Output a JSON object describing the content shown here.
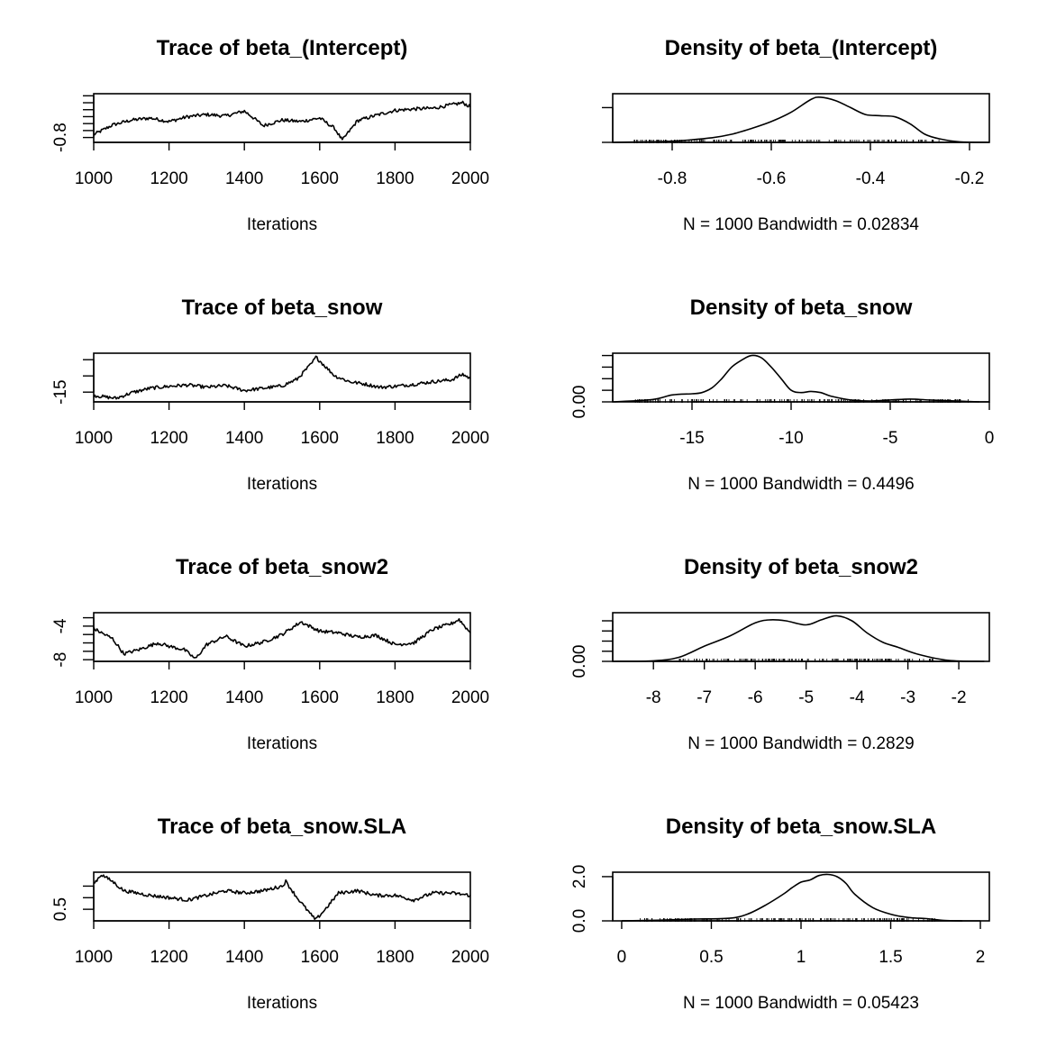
{
  "figure": {
    "layout": "4 rows x 2 columns",
    "background": "#ffffff",
    "line_color": "#000000"
  },
  "chart_data": [
    {
      "type": "line",
      "title": "Trace of beta_(Intercept)",
      "xlabel": "Iterations",
      "ylabel": "",
      "xlim": [
        1000,
        2000
      ],
      "ylim": [
        -0.87,
        -0.17
      ],
      "xticks": [
        1000,
        1200,
        1400,
        1600,
        1800,
        2000
      ],
      "yticks": [
        -0.8,
        -0.7,
        -0.6,
        -0.5,
        -0.4,
        -0.3,
        -0.2
      ],
      "ytick_labels": [
        "-0.8"
      ],
      "series": [
        {
          "x": [
            1000,
            1050,
            1100,
            1150,
            1200,
            1250,
            1300,
            1350,
            1400,
            1420,
            1450,
            1500,
            1550,
            1600,
            1640,
            1660,
            1700,
            1750,
            1800,
            1850,
            1900,
            1950,
            1980,
            2000
          ],
          "values": [
            -0.76,
            -0.62,
            -0.55,
            -0.52,
            -0.57,
            -0.5,
            -0.47,
            -0.49,
            -0.42,
            -0.5,
            -0.63,
            -0.55,
            -0.57,
            -0.52,
            -0.67,
            -0.84,
            -0.56,
            -0.48,
            -0.41,
            -0.39,
            -0.38,
            -0.33,
            -0.3,
            -0.36
          ]
        }
      ]
    },
    {
      "type": "area",
      "title": "Density of beta_(Intercept)",
      "xlabel": "N = 1000   Bandwidth = 0.02834",
      "ylabel": "",
      "xlim": [
        -0.92,
        -0.16
      ],
      "ylim": [
        0,
        4.2
      ],
      "xticks": [
        -0.8,
        -0.6,
        -0.4,
        -0.2
      ],
      "yticks": [
        0,
        3
      ],
      "series": [
        {
          "x": [
            -0.92,
            -0.8,
            -0.72,
            -0.68,
            -0.64,
            -0.6,
            -0.56,
            -0.52,
            -0.5,
            -0.47,
            -0.44,
            -0.41,
            -0.38,
            -0.35,
            -0.32,
            -0.29,
            -0.26,
            -0.22,
            -0.16
          ],
          "values": [
            0,
            0.1,
            0.4,
            0.7,
            1.2,
            1.8,
            2.6,
            3.7,
            3.9,
            3.6,
            3.0,
            2.4,
            2.3,
            2.2,
            1.6,
            0.7,
            0.3,
            0.05,
            0
          ]
        }
      ],
      "rug_range": [
        -0.88,
        -0.25
      ]
    },
    {
      "type": "line",
      "title": "Trace of beta_snow",
      "xlabel": "Iterations",
      "ylabel": "",
      "xlim": [
        1000,
        2000
      ],
      "ylim": [
        -18,
        -3
      ],
      "xticks": [
        1000,
        1200,
        1400,
        1600,
        1800,
        2000
      ],
      "yticks": [
        -15,
        -10,
        -5
      ],
      "ytick_labels": [
        "-15"
      ],
      "series": [
        {
          "x": [
            1000,
            1030,
            1060,
            1100,
            1150,
            1200,
            1250,
            1300,
            1350,
            1400,
            1450,
            1500,
            1540,
            1580,
            1590,
            1610,
            1640,
            1680,
            1720,
            1760,
            1800,
            1850,
            1900,
            1950,
            1980,
            2000
          ],
          "values": [
            -16.0,
            -16.5,
            -16.9,
            -15.2,
            -13.8,
            -13.2,
            -12.8,
            -13.5,
            -13.0,
            -14.5,
            -13.8,
            -13.1,
            -11.0,
            -6.0,
            -4.2,
            -6.5,
            -10.0,
            -11.8,
            -12.5,
            -13.5,
            -13.2,
            -12.6,
            -11.8,
            -11.2,
            -9.5,
            -10.8
          ]
        }
      ]
    },
    {
      "type": "area",
      "title": "Density of beta_snow",
      "xlabel": "N = 1000   Bandwidth = 0.4496",
      "ylabel": "",
      "xlim": [
        -19,
        0
      ],
      "ylim": [
        0,
        0.21
      ],
      "xticks": [
        -15,
        -10,
        -5,
        0
      ],
      "yticks": [
        0.0,
        0.05,
        0.1,
        0.15,
        0.2
      ],
      "ytick_labels": [
        "0.00"
      ],
      "series": [
        {
          "x": [
            -19,
            -17,
            -16,
            -15,
            -14.5,
            -14,
            -13.5,
            -13,
            -12.5,
            -12,
            -11.5,
            -11,
            -10.5,
            -10,
            -9.5,
            -9,
            -8.5,
            -8,
            -7,
            -6,
            -5,
            -4,
            -3,
            -1.5,
            -0.5
          ],
          "values": [
            0,
            0.01,
            0.03,
            0.035,
            0.04,
            0.06,
            0.1,
            0.15,
            0.18,
            0.2,
            0.19,
            0.15,
            0.1,
            0.05,
            0.04,
            0.045,
            0.04,
            0.025,
            0.008,
            0.004,
            0.008,
            0.012,
            0.008,
            0.003,
            0
          ]
        }
      ],
      "rug_range": [
        -18,
        -1
      ]
    },
    {
      "type": "line",
      "title": "Trace of beta_snow2",
      "xlabel": "Iterations",
      "ylabel": "",
      "xlim": [
        1000,
        2000
      ],
      "ylim": [
        -8.2,
        -2.4
      ],
      "xticks": [
        1000,
        1200,
        1400,
        1600,
        1800,
        2000
      ],
      "yticks": [
        -8,
        -7,
        -6,
        -5,
        -4,
        -3
      ],
      "ytick_labels": [
        "-8",
        "-4"
      ],
      "series": [
        {
          "x": [
            1000,
            1050,
            1080,
            1120,
            1170,
            1200,
            1240,
            1270,
            1300,
            1350,
            1400,
            1450,
            1500,
            1550,
            1600,
            1650,
            1700,
            1750,
            1800,
            1850,
            1900,
            1950,
            1970,
            2000
          ],
          "values": [
            -4.3,
            -5.5,
            -7.3,
            -6.8,
            -6.0,
            -6.4,
            -6.8,
            -7.9,
            -6.2,
            -5.2,
            -6.4,
            -5.9,
            -5.0,
            -3.5,
            -4.6,
            -4.8,
            -5.3,
            -5.1,
            -6.2,
            -6.0,
            -4.4,
            -3.7,
            -3.2,
            -4.8
          ]
        }
      ]
    },
    {
      "type": "area",
      "title": "Density of beta_snow2",
      "xlabel": "N = 1000   Bandwidth = 0.2829",
      "ylabel": "",
      "xlim": [
        -8.8,
        -1.4
      ],
      "ylim": [
        0,
        0.48
      ],
      "xticks": [
        -8,
        -7,
        -6,
        -5,
        -4,
        -3,
        -2
      ],
      "yticks": [
        0.0,
        0.1,
        0.2,
        0.3,
        0.4
      ],
      "ytick_labels": [
        "0.00"
      ],
      "series": [
        {
          "x": [
            -8.8,
            -8.0,
            -7.5,
            -7.0,
            -6.5,
            -6.0,
            -5.7,
            -5.4,
            -5.0,
            -4.7,
            -4.4,
            -4.1,
            -3.8,
            -3.5,
            -3.2,
            -2.8,
            -2.2,
            -1.5
          ],
          "values": [
            0,
            0.005,
            0.04,
            0.15,
            0.25,
            0.38,
            0.41,
            0.4,
            0.36,
            0.41,
            0.45,
            0.4,
            0.28,
            0.19,
            0.14,
            0.07,
            0.01,
            0
          ]
        }
      ],
      "rug_range": [
        -7.5,
        -2.5
      ]
    },
    {
      "type": "line",
      "title": "Trace of beta_snow.SLA",
      "xlabel": "Iterations",
      "ylabel": "",
      "xlim": [
        1000,
        2000
      ],
      "ylim": [
        0.0,
        2.1
      ],
      "xticks": [
        1000,
        1200,
        1400,
        1600,
        1800,
        2000
      ],
      "yticks": [
        0.5,
        1.0,
        1.5
      ],
      "ytick_labels": [
        "0.5"
      ],
      "series": [
        {
          "x": [
            1000,
            1020,
            1050,
            1080,
            1150,
            1200,
            1250,
            1300,
            1350,
            1400,
            1450,
            1500,
            1510,
            1540,
            1580,
            1590,
            1620,
            1650,
            1700,
            1750,
            1800,
            1850,
            1900,
            1950,
            2000
          ],
          "values": [
            1.6,
            2.0,
            1.7,
            1.3,
            1.1,
            1.0,
            0.9,
            1.1,
            1.3,
            1.2,
            1.3,
            1.5,
            1.7,
            1.0,
            0.2,
            0.05,
            0.6,
            1.2,
            1.3,
            1.1,
            1.1,
            0.9,
            1.2,
            1.2,
            1.1
          ]
        }
      ]
    },
    {
      "type": "area",
      "title": "Density of beta_snow.SLA",
      "xlabel": "N = 1000   Bandwidth = 0.05423",
      "ylabel": "",
      "xlim": [
        -0.05,
        2.05
      ],
      "ylim": [
        0,
        2.2
      ],
      "xticks": [
        0.0,
        0.5,
        1.0,
        1.5,
        2.0
      ],
      "yticks": [
        0.0,
        2.0
      ],
      "ytick_labels": [
        "0.0",
        "2.0"
      ],
      "series": [
        {
          "x": [
            0.0,
            0.2,
            0.4,
            0.6,
            0.7,
            0.8,
            0.9,
            0.95,
            1.0,
            1.05,
            1.1,
            1.15,
            1.2,
            1.25,
            1.3,
            1.4,
            1.5,
            1.6,
            1.7,
            1.8,
            1.9
          ],
          "values": [
            0,
            0.03,
            0.08,
            0.12,
            0.3,
            0.7,
            1.2,
            1.5,
            1.75,
            1.85,
            2.05,
            2.1,
            2.0,
            1.7,
            1.2,
            0.6,
            0.3,
            0.15,
            0.1,
            0.02,
            0
          ]
        }
      ],
      "rug_range": [
        0.1,
        1.75
      ]
    }
  ]
}
